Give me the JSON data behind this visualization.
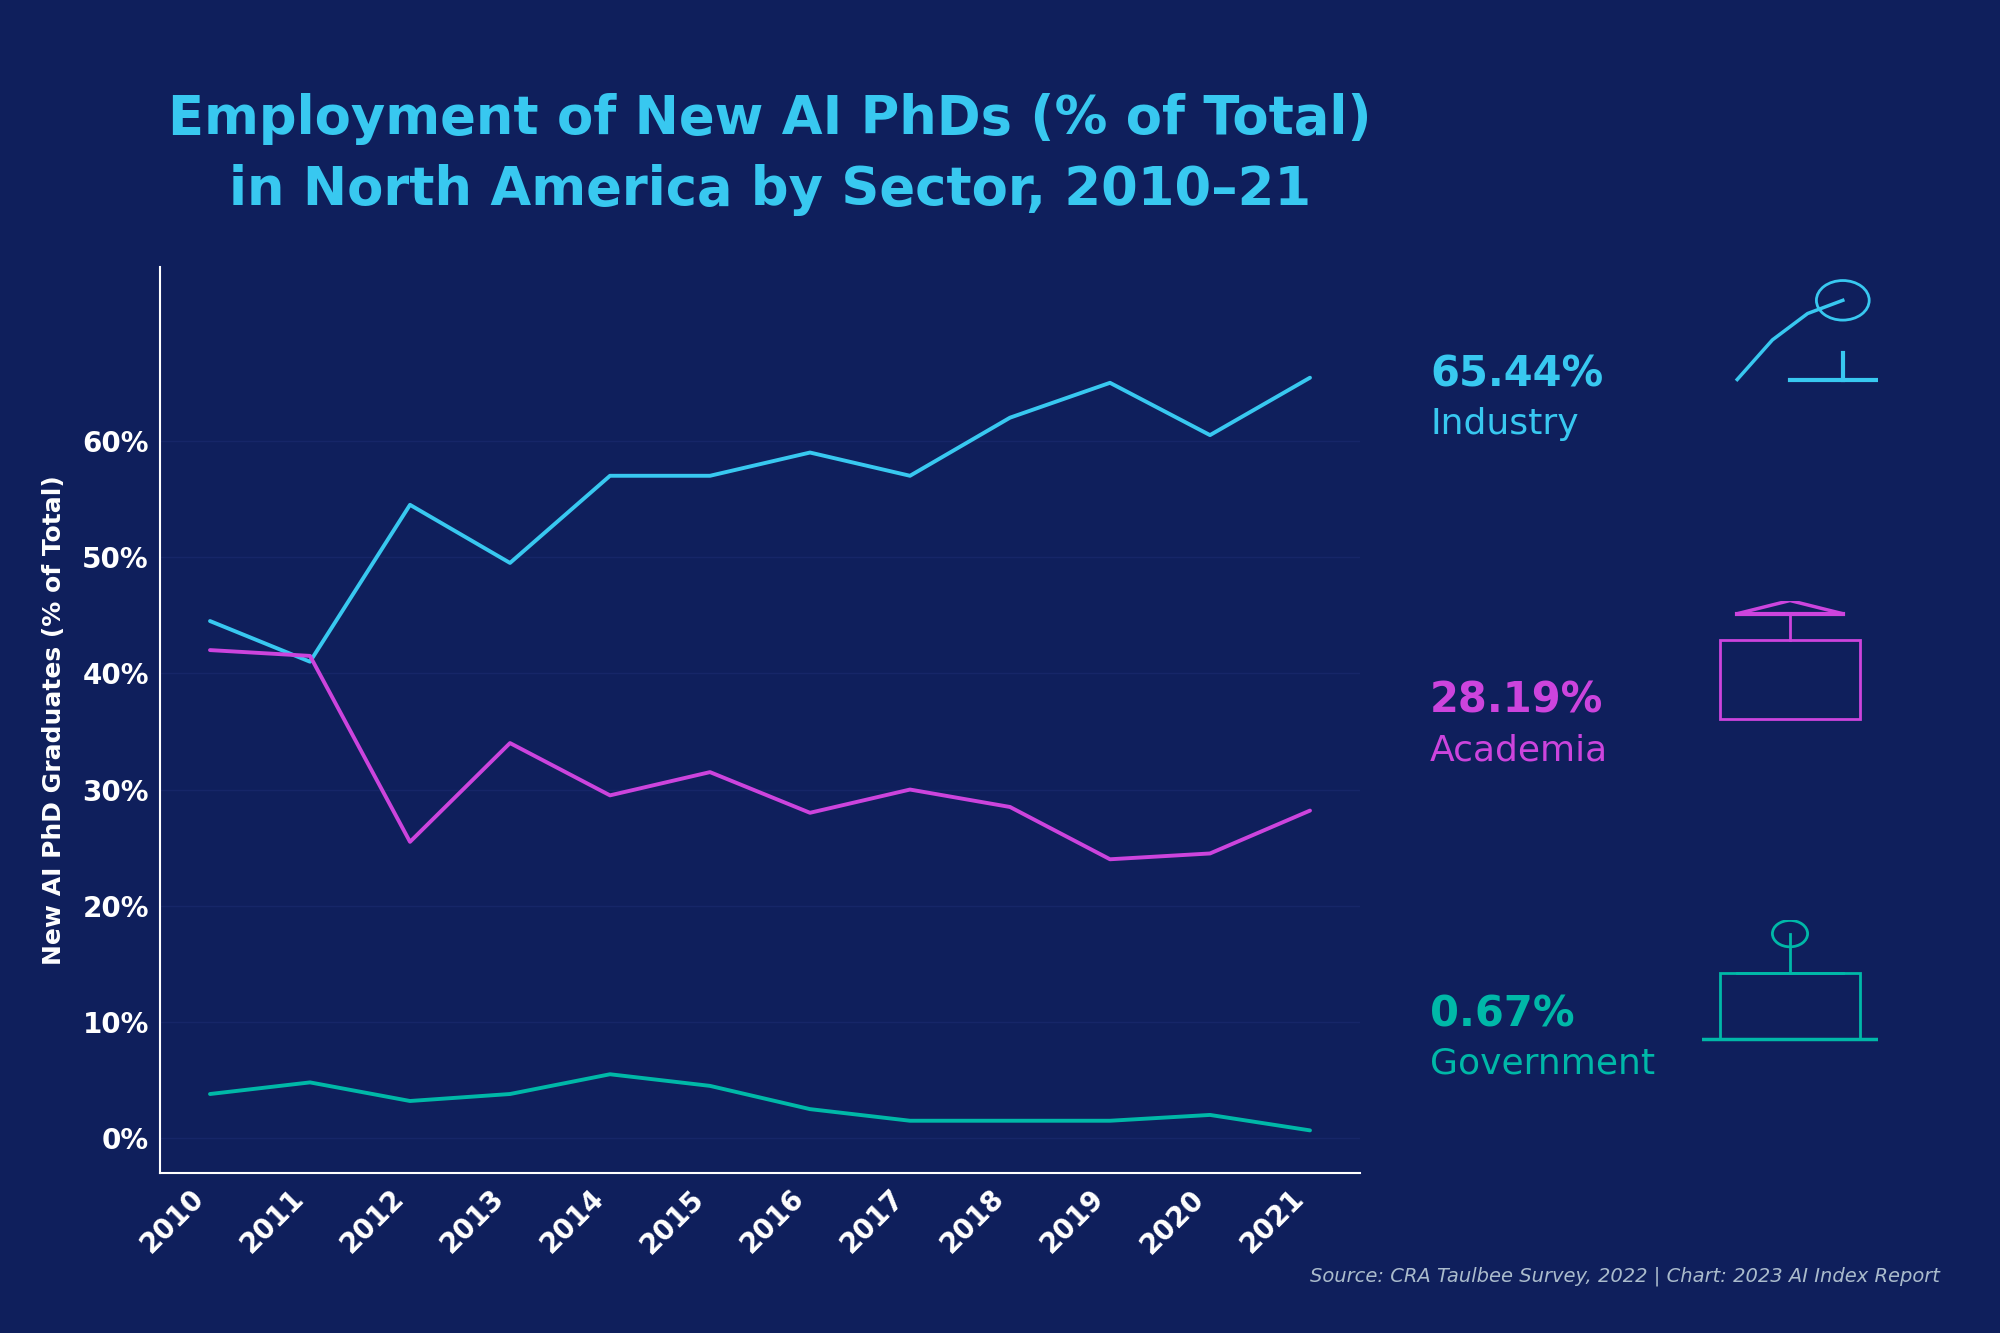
{
  "title_line1": "Employment of New AI PhDs (% of Total)",
  "title_line2": "in North America by Sector, 2010–21",
  "ylabel": "New AI PhD Graduates (% of Total)",
  "source": "Source: CRA Taulbee Survey, 2022 | Chart: 2023 AI Index Report",
  "background_color": "#0f1f5c",
  "years": [
    2010,
    2011,
    2012,
    2013,
    2014,
    2015,
    2016,
    2017,
    2018,
    2019,
    2020,
    2021
  ],
  "industry": [
    44.5,
    41.0,
    54.5,
    49.5,
    57.0,
    57.0,
    59.0,
    57.0,
    62.0,
    65.0,
    60.5,
    65.44
  ],
  "academia": [
    42.0,
    41.5,
    25.5,
    34.0,
    29.5,
    31.5,
    28.0,
    30.0,
    28.5,
    24.0,
    24.5,
    28.19
  ],
  "government": [
    3.8,
    4.8,
    3.2,
    3.8,
    5.5,
    4.5,
    2.5,
    1.5,
    1.5,
    1.5,
    2.0,
    0.67
  ],
  "industry_color": "#38c8f0",
  "academia_color": "#cc44dd",
  "government_color": "#00b8a8",
  "title_color": "#38c8f0",
  "axis_color": "#ffffff",
  "grid_color": "#162668",
  "line_width": 2.8,
  "ylim": [
    -3,
    75
  ],
  "yticks": [
    0,
    10,
    20,
    30,
    40,
    50,
    60
  ],
  "ytick_labels": [
    "0%",
    "10%",
    "20%",
    "30%",
    "40%",
    "50%",
    "60%"
  ]
}
